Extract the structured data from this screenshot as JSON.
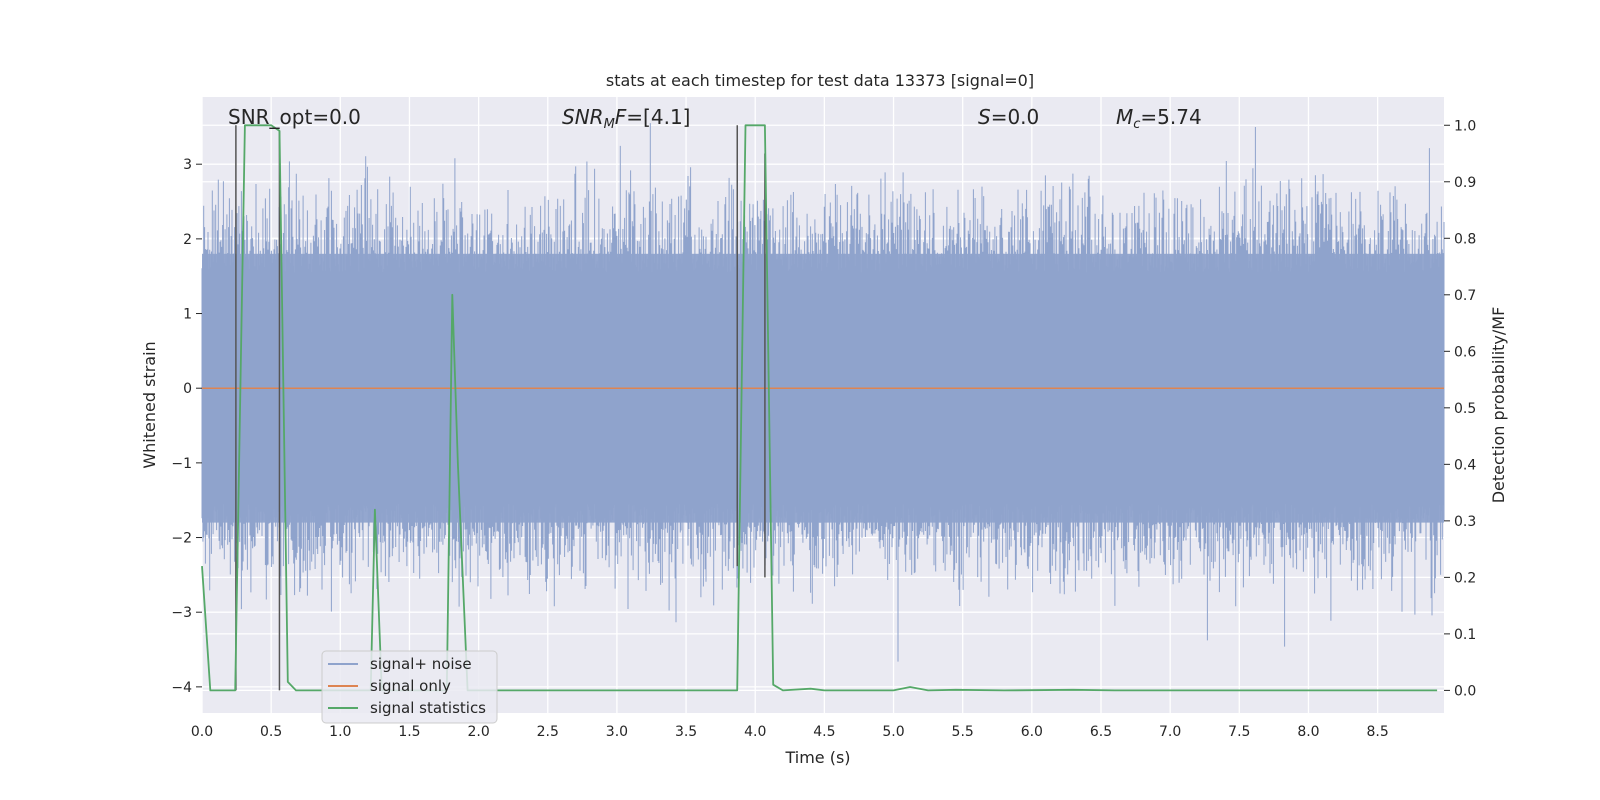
{
  "chart_data": {
    "type": "line",
    "title": "stats at each timestep for test data 13373 [signal=0]",
    "xlabel": "Time (s)",
    "ylabel_left": "Whitened strain",
    "ylabel_right": "Detection probability/MF",
    "xlim": [
      0,
      8.98
    ],
    "ylim_left": [
      -4.35,
      3.9
    ],
    "ylim_right": [
      -0.04,
      1.05
    ],
    "x_ticks": [
      "0.0",
      "0.5",
      "1.0",
      "1.5",
      "2.0",
      "2.5",
      "3.0",
      "3.5",
      "4.0",
      "4.5",
      "5.0",
      "5.5",
      "6.0",
      "6.5",
      "7.0",
      "7.5",
      "8.0",
      "8.5"
    ],
    "y_ticks_left": [
      "−4",
      "−3",
      "−2",
      "−1",
      "0",
      "1",
      "2",
      "3"
    ],
    "y_ticks_right": [
      "0.0",
      "0.1",
      "0.2",
      "0.3",
      "0.4",
      "0.5",
      "0.6",
      "0.7",
      "0.8",
      "0.9",
      "1.0"
    ],
    "grid": true,
    "legend_position": "lower-left",
    "annotations": {
      "snr_opt": "SNR_opt=0.0",
      "snr_mf_var": "SNR",
      "snr_mf_sub": "M",
      "snr_mf_var2": "F",
      "snr_mf_val": "=[4.1]",
      "s_var": "S",
      "s_val": "=0.0",
      "mc_var": "M",
      "mc_sub": "c",
      "mc_val": "=5.74"
    },
    "series": [
      {
        "name": "signal+ noise",
        "color": "#8fa3cc",
        "axis": "left",
        "kind": "noise",
        "typical_upper_envelope": 1.8,
        "typical_lower_envelope": -1.8,
        "max_value": 3.55,
        "min_value": -4.0
      },
      {
        "name": "signal only",
        "color": "#dd8452",
        "axis": "left",
        "x": [
          0,
          8.98
        ],
        "y": [
          0,
          0
        ]
      },
      {
        "name": "signal statistics",
        "color": "#55a868",
        "axis": "right",
        "x": [
          0.0,
          0.06,
          0.12,
          0.24,
          0.31,
          0.5,
          0.56,
          0.62,
          0.68,
          1.22,
          1.25,
          1.3,
          1.77,
          1.81,
          1.85,
          1.92,
          2.2,
          3.87,
          3.93,
          4.07,
          4.13,
          4.2,
          4.4,
          4.5,
          4.8,
          5.0,
          5.12,
          5.25,
          5.45,
          5.8,
          6.3,
          6.6,
          7.0,
          8.93
        ],
        "y": [
          0.22,
          0.0,
          0.0,
          0.0,
          1.0,
          1.0,
          0.99,
          0.015,
          0.0,
          0.0,
          0.32,
          0.0,
          0.0,
          0.7,
          0.4,
          0.0,
          0.0,
          0.0,
          1.0,
          1.0,
          0.01,
          0.0,
          0.003,
          0.0,
          0.0,
          0.0,
          0.006,
          0.0,
          0.001,
          0.0,
          0.001,
          0.0,
          0.0,
          0.0
        ]
      }
    ],
    "markers": {
      "color": "#555555",
      "vertical_lines": [
        {
          "x": 0.245,
          "y_top": 1.0,
          "y_bottom": 0.0
        },
        {
          "x": 0.56,
          "y_top": 0.99,
          "y_bottom": 0.0
        },
        {
          "x": 3.87,
          "y_top": 1.0,
          "y_bottom": 0.22
        },
        {
          "x": 4.07,
          "y_top": 0.95,
          "y_bottom": 0.2
        }
      ]
    }
  }
}
